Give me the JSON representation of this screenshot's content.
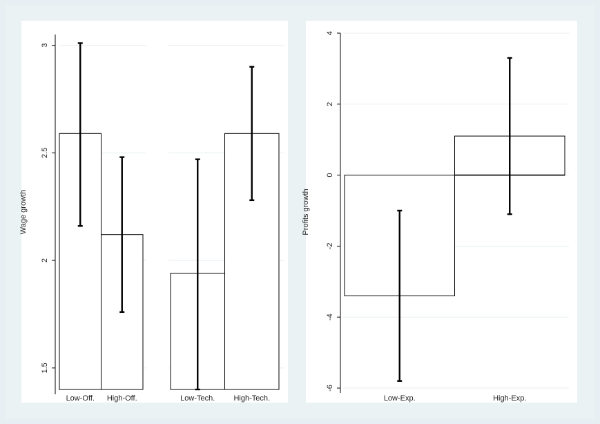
{
  "chart_data": [
    {
      "type": "bar",
      "id": "wage",
      "ylabel": "Wage growth",
      "ylim": [
        1.4,
        3.05
      ],
      "yticks": [
        1.5,
        2,
        2.5,
        3
      ],
      "ytick_labels": [
        "1.5",
        "2",
        "2.5",
        "3"
      ],
      "groups": [
        {
          "categories": [
            "Low-Off.",
            "High-Off."
          ],
          "values": [
            2.59,
            2.12
          ],
          "error_low": [
            2.16,
            1.76
          ],
          "error_high": [
            3.01,
            2.48
          ]
        },
        {
          "categories": [
            "Low-Tech.",
            "High-Tech."
          ],
          "values": [
            1.94,
            2.59
          ],
          "error_low": [
            1.4,
            2.28
          ],
          "error_high": [
            2.47,
            2.9
          ]
        }
      ]
    },
    {
      "type": "bar",
      "id": "profits",
      "ylabel": "Profits growth",
      "ylim": [
        -6,
        4
      ],
      "yticks": [
        -6,
        -4,
        -2,
        0,
        2,
        4
      ],
      "ytick_labels": [
        "-6",
        "-4",
        "-2",
        "0",
        "2",
        "4"
      ],
      "baseline": 0,
      "groups": [
        {
          "categories": [
            "Low-Exp.",
            "High-Exp."
          ],
          "values": [
            -3.4,
            1.1
          ],
          "error_low": [
            -5.8,
            -1.1
          ],
          "error_high": [
            -1.0,
            3.3
          ]
        }
      ]
    }
  ]
}
